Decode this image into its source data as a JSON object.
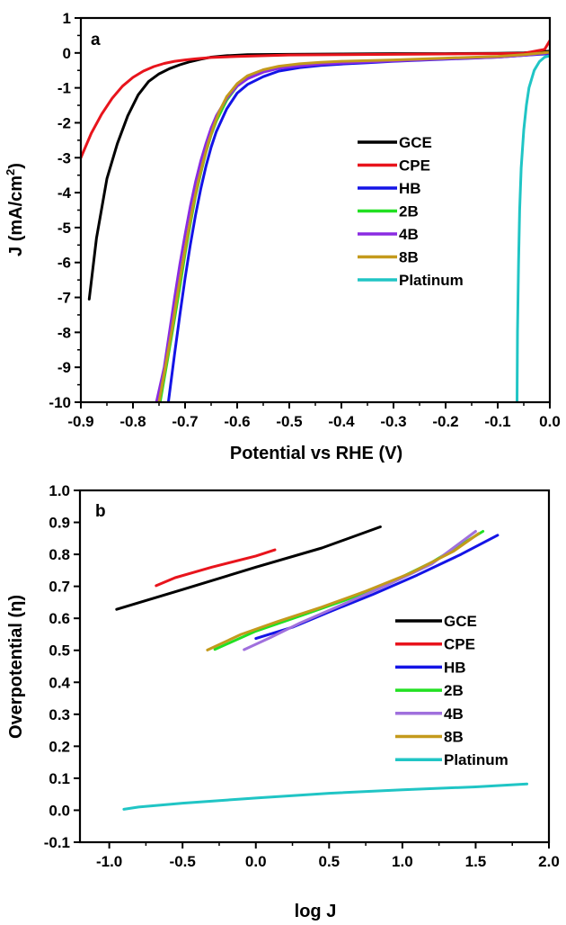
{
  "chart_data": [
    {
      "type": "line",
      "panel_label": "a",
      "xlabel": "Potential vs RHE (V)",
      "ylabel": "J (mA/cm²)",
      "ylabel_main": "J (mA/cm",
      "ylabel_sup": "2",
      "ylabel_close": ")",
      "xlim": [
        -0.9,
        0.0
      ],
      "ylim": [
        -10,
        1
      ],
      "xticks": [
        -0.9,
        -0.8,
        -0.7,
        -0.6,
        -0.5,
        -0.4,
        -0.3,
        -0.2,
        -0.1,
        0.0
      ],
      "yticks": [
        1,
        0,
        -1,
        -2,
        -3,
        -4,
        -5,
        -6,
        -7,
        -8,
        -9,
        -10
      ],
      "legend_position": "right",
      "series": [
        {
          "name": "GCE",
          "color": "#000000",
          "x": [
            -0.884,
            -0.87,
            -0.85,
            -0.83,
            -0.81,
            -0.79,
            -0.77,
            -0.75,
            -0.73,
            -0.71,
            -0.69,
            -0.67,
            -0.65,
            -0.62,
            -0.58,
            -0.5,
            -0.4,
            -0.3,
            -0.2,
            -0.1,
            -0.05,
            0.0
          ],
          "y": [
            -7.05,
            -5.3,
            -3.6,
            -2.6,
            -1.8,
            -1.2,
            -0.82,
            -0.6,
            -0.45,
            -0.34,
            -0.25,
            -0.18,
            -0.12,
            -0.08,
            -0.05,
            -0.04,
            -0.03,
            -0.02,
            -0.02,
            -0.01,
            0.0,
            0.05
          ]
        },
        {
          "name": "CPE",
          "color": "#e8141c",
          "x": [
            -0.9,
            -0.88,
            -0.86,
            -0.84,
            -0.82,
            -0.8,
            -0.78,
            -0.76,
            -0.74,
            -0.72,
            -0.7,
            -0.68,
            -0.65,
            -0.6,
            -0.5,
            -0.4,
            -0.3,
            -0.2,
            -0.1,
            -0.05,
            -0.01,
            0.0
          ],
          "y": [
            -3.0,
            -2.3,
            -1.75,
            -1.3,
            -0.95,
            -0.7,
            -0.52,
            -0.39,
            -0.3,
            -0.24,
            -0.2,
            -0.17,
            -0.13,
            -0.1,
            -0.06,
            -0.05,
            -0.04,
            -0.03,
            -0.02,
            -0.01,
            0.1,
            0.35
          ]
        },
        {
          "name": "HB",
          "color": "#1414e6",
          "x": [
            -0.732,
            -0.72,
            -0.71,
            -0.7,
            -0.69,
            -0.68,
            -0.67,
            -0.66,
            -0.65,
            -0.64,
            -0.62,
            -0.6,
            -0.58,
            -0.55,
            -0.52,
            -0.48,
            -0.44,
            -0.4,
            -0.35,
            -0.3,
            -0.2,
            -0.1,
            -0.05,
            0.0
          ],
          "y": [
            -10.0,
            -8.6,
            -7.5,
            -6.45,
            -5.5,
            -4.65,
            -3.9,
            -3.25,
            -2.7,
            -2.25,
            -1.6,
            -1.15,
            -0.9,
            -0.68,
            -0.52,
            -0.42,
            -0.36,
            -0.32,
            -0.28,
            -0.24,
            -0.18,
            -0.12,
            -0.07,
            -0.02
          ]
        },
        {
          "name": "2B",
          "color": "#22e022",
          "x": [
            -0.748,
            -0.735,
            -0.72,
            -0.71,
            -0.7,
            -0.69,
            -0.68,
            -0.67,
            -0.66,
            -0.65,
            -0.64,
            -0.62,
            -0.6,
            -0.58,
            -0.55,
            -0.52,
            -0.48,
            -0.44,
            -0.4,
            -0.35,
            -0.3,
            -0.2,
            -0.1,
            -0.05,
            0.0
          ],
          "y": [
            -10.0,
            -8.9,
            -7.6,
            -6.7,
            -5.75,
            -4.9,
            -4.1,
            -3.45,
            -2.85,
            -2.35,
            -1.95,
            -1.35,
            -0.95,
            -0.72,
            -0.52,
            -0.41,
            -0.34,
            -0.3,
            -0.27,
            -0.24,
            -0.21,
            -0.16,
            -0.11,
            -0.06,
            0.0
          ]
        },
        {
          "name": "4B",
          "color": "#8a2be2",
          "x": [
            -0.755,
            -0.74,
            -0.73,
            -0.72,
            -0.71,
            -0.7,
            -0.69,
            -0.68,
            -0.67,
            -0.66,
            -0.65,
            -0.64,
            -0.62,
            -0.6,
            -0.58,
            -0.55,
            -0.52,
            -0.48,
            -0.44,
            -0.4,
            -0.35,
            -0.3,
            -0.2,
            -0.1,
            -0.05,
            0.0
          ],
          "y": [
            -10.0,
            -9.0,
            -8.0,
            -7.0,
            -6.05,
            -5.2,
            -4.4,
            -3.7,
            -3.1,
            -2.6,
            -2.15,
            -1.8,
            -1.3,
            -0.95,
            -0.74,
            -0.55,
            -0.44,
            -0.37,
            -0.32,
            -0.29,
            -0.26,
            -0.23,
            -0.17,
            -0.12,
            -0.07,
            0.0
          ]
        },
        {
          "name": "8B",
          "color": "#c49a1c",
          "x": [
            -0.75,
            -0.738,
            -0.725,
            -0.715,
            -0.705,
            -0.695,
            -0.685,
            -0.675,
            -0.665,
            -0.655,
            -0.645,
            -0.635,
            -0.62,
            -0.6,
            -0.58,
            -0.55,
            -0.52,
            -0.48,
            -0.44,
            -0.4,
            -0.35,
            -0.3,
            -0.2,
            -0.1,
            -0.05,
            0.0
          ],
          "y": [
            -10.0,
            -9.0,
            -7.9,
            -6.95,
            -6.05,
            -5.2,
            -4.4,
            -3.7,
            -3.1,
            -2.55,
            -2.1,
            -1.7,
            -1.25,
            -0.88,
            -0.65,
            -0.48,
            -0.38,
            -0.31,
            -0.27,
            -0.24,
            -0.22,
            -0.2,
            -0.15,
            -0.1,
            -0.05,
            0.02
          ]
        },
        {
          "name": "Platinum",
          "color": "#20c5c5",
          "x": [
            -0.063,
            -0.062,
            -0.06,
            -0.058,
            -0.055,
            -0.05,
            -0.045,
            -0.04,
            -0.03,
            -0.02,
            -0.01,
            0.0
          ],
          "y": [
            -10.0,
            -8.0,
            -6.0,
            -4.5,
            -3.3,
            -2.2,
            -1.5,
            -1.0,
            -0.5,
            -0.25,
            -0.12,
            -0.08
          ]
        }
      ]
    },
    {
      "type": "line",
      "panel_label": "b",
      "xlabel": "log J",
      "ylabel": "Overpotential (η)",
      "xlim": [
        -1.2,
        2.0
      ],
      "ylim": [
        -0.1,
        1.0
      ],
      "xticks": [
        -1.0,
        -0.5,
        0.0,
        0.5,
        1.0,
        1.5,
        2.0
      ],
      "yticks": [
        -0.1,
        0.0,
        0.1,
        0.2,
        0.3,
        0.4,
        0.5,
        0.6,
        0.7,
        0.8,
        0.9,
        1.0
      ],
      "legend_position": "right",
      "series": [
        {
          "name": "GCE",
          "color": "#000000",
          "x": [
            -0.95,
            -0.5,
            0.0,
            0.45,
            0.85
          ],
          "y": [
            0.628,
            0.69,
            0.76,
            0.82,
            0.886
          ]
        },
        {
          "name": "CPE",
          "color": "#e8141c",
          "x": [
            -0.68,
            -0.55,
            -0.3,
            0.0,
            0.13
          ],
          "y": [
            0.702,
            0.727,
            0.76,
            0.795,
            0.814
          ]
        },
        {
          "name": "HB",
          "color": "#1414e6",
          "x": [
            0.0,
            0.25,
            0.5,
            0.8,
            1.1,
            1.4,
            1.65
          ],
          "y": [
            0.537,
            0.572,
            0.62,
            0.675,
            0.735,
            0.8,
            0.86
          ]
        },
        {
          "name": "2B",
          "color": "#22e022",
          "x": [
            -0.28,
            0.0,
            0.3,
            0.6,
            0.9,
            1.2,
            1.55
          ],
          "y": [
            0.503,
            0.56,
            0.607,
            0.655,
            0.708,
            0.775,
            0.872
          ]
        },
        {
          "name": "4B",
          "color": "#a070dd",
          "x": [
            -0.08,
            0.1,
            0.3,
            0.6,
            0.9,
            1.2,
            1.5
          ],
          "y": [
            0.502,
            0.54,
            0.585,
            0.645,
            0.705,
            0.77,
            0.872
          ]
        },
        {
          "name": "8B",
          "color": "#c49a1c",
          "x": [
            -0.33,
            -0.1,
            0.15,
            0.45,
            0.75,
            1.05,
            1.35,
            1.52
          ],
          "y": [
            0.501,
            0.55,
            0.59,
            0.635,
            0.685,
            0.74,
            0.81,
            0.865
          ]
        },
        {
          "name": "Platinum",
          "color": "#20c5c5",
          "x": [
            -0.9,
            -0.8,
            -0.5,
            0.0,
            0.5,
            1.0,
            1.5,
            1.85
          ],
          "y": [
            0.003,
            0.01,
            0.022,
            0.038,
            0.053,
            0.064,
            0.073,
            0.082
          ]
        }
      ]
    }
  ]
}
